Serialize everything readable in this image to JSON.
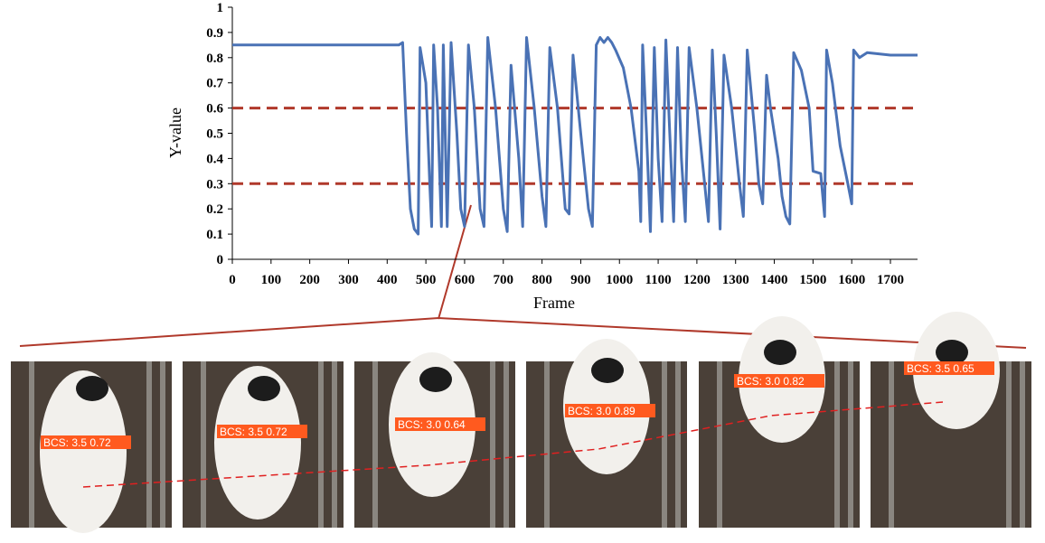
{
  "chart_data": {
    "type": "line",
    "x_label": "Frame",
    "y_label": "Y-value",
    "xlim": [
      0,
      1770
    ],
    "ylim": [
      0,
      1
    ],
    "xticks": [
      0,
      100,
      200,
      300,
      400,
      500,
      600,
      700,
      800,
      900,
      1000,
      1100,
      1200,
      1300,
      1400,
      1500,
      1600,
      1700
    ],
    "yticks": [
      0,
      0.1,
      0.2,
      0.3,
      0.4,
      0.5,
      0.6,
      0.7,
      0.8,
      0.9,
      1
    ],
    "hlines": [
      0.6,
      0.3
    ],
    "hline_color": "#b0392b",
    "series": [
      {
        "color": "#4a72b5",
        "x": [
          0,
          430,
          440,
          450,
          460,
          470,
          480,
          485,
          500,
          510,
          515,
          520,
          530,
          540,
          545,
          555,
          565,
          580,
          590,
          600,
          610,
          625,
          640,
          650,
          660,
          680,
          700,
          710,
          720,
          740,
          750,
          760,
          780,
          800,
          810,
          820,
          840,
          860,
          870,
          880,
          900,
          920,
          930,
          940,
          950,
          960,
          970,
          980,
          990,
          1010,
          1030,
          1050,
          1055,
          1060,
          1070,
          1080,
          1090,
          1100,
          1110,
          1120,
          1130,
          1140,
          1150,
          1160,
          1170,
          1180,
          1200,
          1220,
          1230,
          1240,
          1250,
          1260,
          1270,
          1290,
          1310,
          1320,
          1330,
          1350,
          1360,
          1370,
          1380,
          1390,
          1410,
          1420,
          1430,
          1440,
          1450,
          1470,
          1490,
          1500,
          1520,
          1530,
          1535,
          1550,
          1570,
          1590,
          1600,
          1605,
          1620,
          1640,
          1700,
          1770
        ],
        "values": [
          0.85,
          0.85,
          0.86,
          0.5,
          0.2,
          0.12,
          0.1,
          0.84,
          0.7,
          0.3,
          0.13,
          0.85,
          0.6,
          0.13,
          0.85,
          0.13,
          0.86,
          0.5,
          0.2,
          0.13,
          0.85,
          0.6,
          0.2,
          0.13,
          0.88,
          0.6,
          0.2,
          0.11,
          0.77,
          0.4,
          0.13,
          0.88,
          0.6,
          0.25,
          0.13,
          0.84,
          0.6,
          0.2,
          0.18,
          0.81,
          0.5,
          0.2,
          0.13,
          0.85,
          0.88,
          0.86,
          0.88,
          0.86,
          0.83,
          0.76,
          0.6,
          0.35,
          0.15,
          0.85,
          0.5,
          0.11,
          0.84,
          0.4,
          0.15,
          0.87,
          0.5,
          0.15,
          0.84,
          0.4,
          0.15,
          0.84,
          0.6,
          0.3,
          0.15,
          0.83,
          0.5,
          0.12,
          0.81,
          0.6,
          0.3,
          0.17,
          0.83,
          0.5,
          0.3,
          0.22,
          0.73,
          0.6,
          0.4,
          0.25,
          0.17,
          0.14,
          0.82,
          0.75,
          0.6,
          0.35,
          0.34,
          0.17,
          0.83,
          0.7,
          0.45,
          0.3,
          0.22,
          0.83,
          0.8,
          0.82,
          0.81,
          0.81
        ]
      }
    ]
  },
  "frames": [
    {
      "label": "BCS: 3.5 0.72"
    },
    {
      "label": "BCS: 3.5 0.72"
    },
    {
      "label": "BCS: 3.0 0.64"
    },
    {
      "label": "BCS: 3.0 0.89"
    },
    {
      "label": "BCS: 3.0 0.82"
    },
    {
      "label": "BCS: 3.5 0.65"
    }
  ]
}
